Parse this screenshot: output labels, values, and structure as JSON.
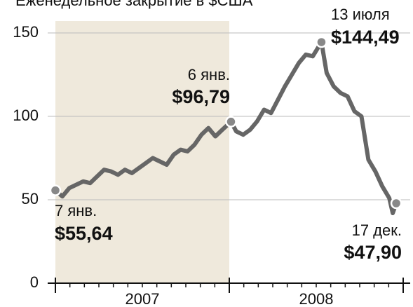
{
  "chart_data": {
    "type": "line",
    "title": "Еженедельное закрытие в $США",
    "x": [
      2007.0,
      2007.04,
      2007.08,
      2007.12,
      2007.16,
      2007.2,
      2007.24,
      2007.28,
      2007.32,
      2007.36,
      2007.4,
      2007.44,
      2007.48,
      2007.52,
      2007.56,
      2007.6,
      2007.64,
      2007.68,
      2007.72,
      2007.76,
      2007.8,
      2007.84,
      2007.88,
      2007.92,
      2007.96,
      2008.01,
      2008.04,
      2008.08,
      2008.12,
      2008.16,
      2008.2,
      2008.24,
      2008.28,
      2008.32,
      2008.36,
      2008.4,
      2008.44,
      2008.48,
      2008.53,
      2008.56,
      2008.6,
      2008.64,
      2008.68,
      2008.72,
      2008.76,
      2008.8,
      2008.84,
      2008.88,
      2008.92,
      2008.94,
      2008.96
    ],
    "series": [
      {
        "color": "#666666",
        "values": [
          55.64,
          52,
          57,
          59,
          61,
          60,
          64,
          68,
          67,
          65,
          68,
          66,
          69,
          72,
          75,
          73,
          71,
          77,
          80,
          79,
          83,
          89,
          93,
          88,
          92,
          96.79,
          91,
          89,
          92,
          97,
          104,
          102,
          110,
          118,
          125,
          132,
          137,
          136,
          144.49,
          126,
          118,
          114,
          112,
          103,
          100,
          74,
          67,
          58,
          51,
          42,
          47.9
        ]
      }
    ],
    "annotations": [
      {
        "text": "7 янв.",
        "label": "$55,64",
        "x": 2007.0,
        "value": 55.64
      },
      {
        "text": "6 янв.",
        "label": "$96,79",
        "x": 2008.01,
        "value": 96.79
      },
      {
        "text": "13 июля",
        "label": "$144,49",
        "x": 2008.53,
        "value": 144.49
      },
      {
        "text": "17 дек.",
        "label": "$47,90",
        "x": 2008.96,
        "value": 47.9
      }
    ],
    "highlight": [
      2007,
      2008
    ],
    "year_labels": [
      {
        "value": 2007.5,
        "label": "2007"
      },
      {
        "value": 2008.5,
        "label": "2008"
      }
    ],
    "xlim": [
      2007,
      2009
    ],
    "xticks": [
      2007,
      2008,
      2009
    ],
    "ylim": [
      0,
      150
    ],
    "yticks": [
      0,
      50,
      100,
      150
    ],
    "grid": true
  }
}
